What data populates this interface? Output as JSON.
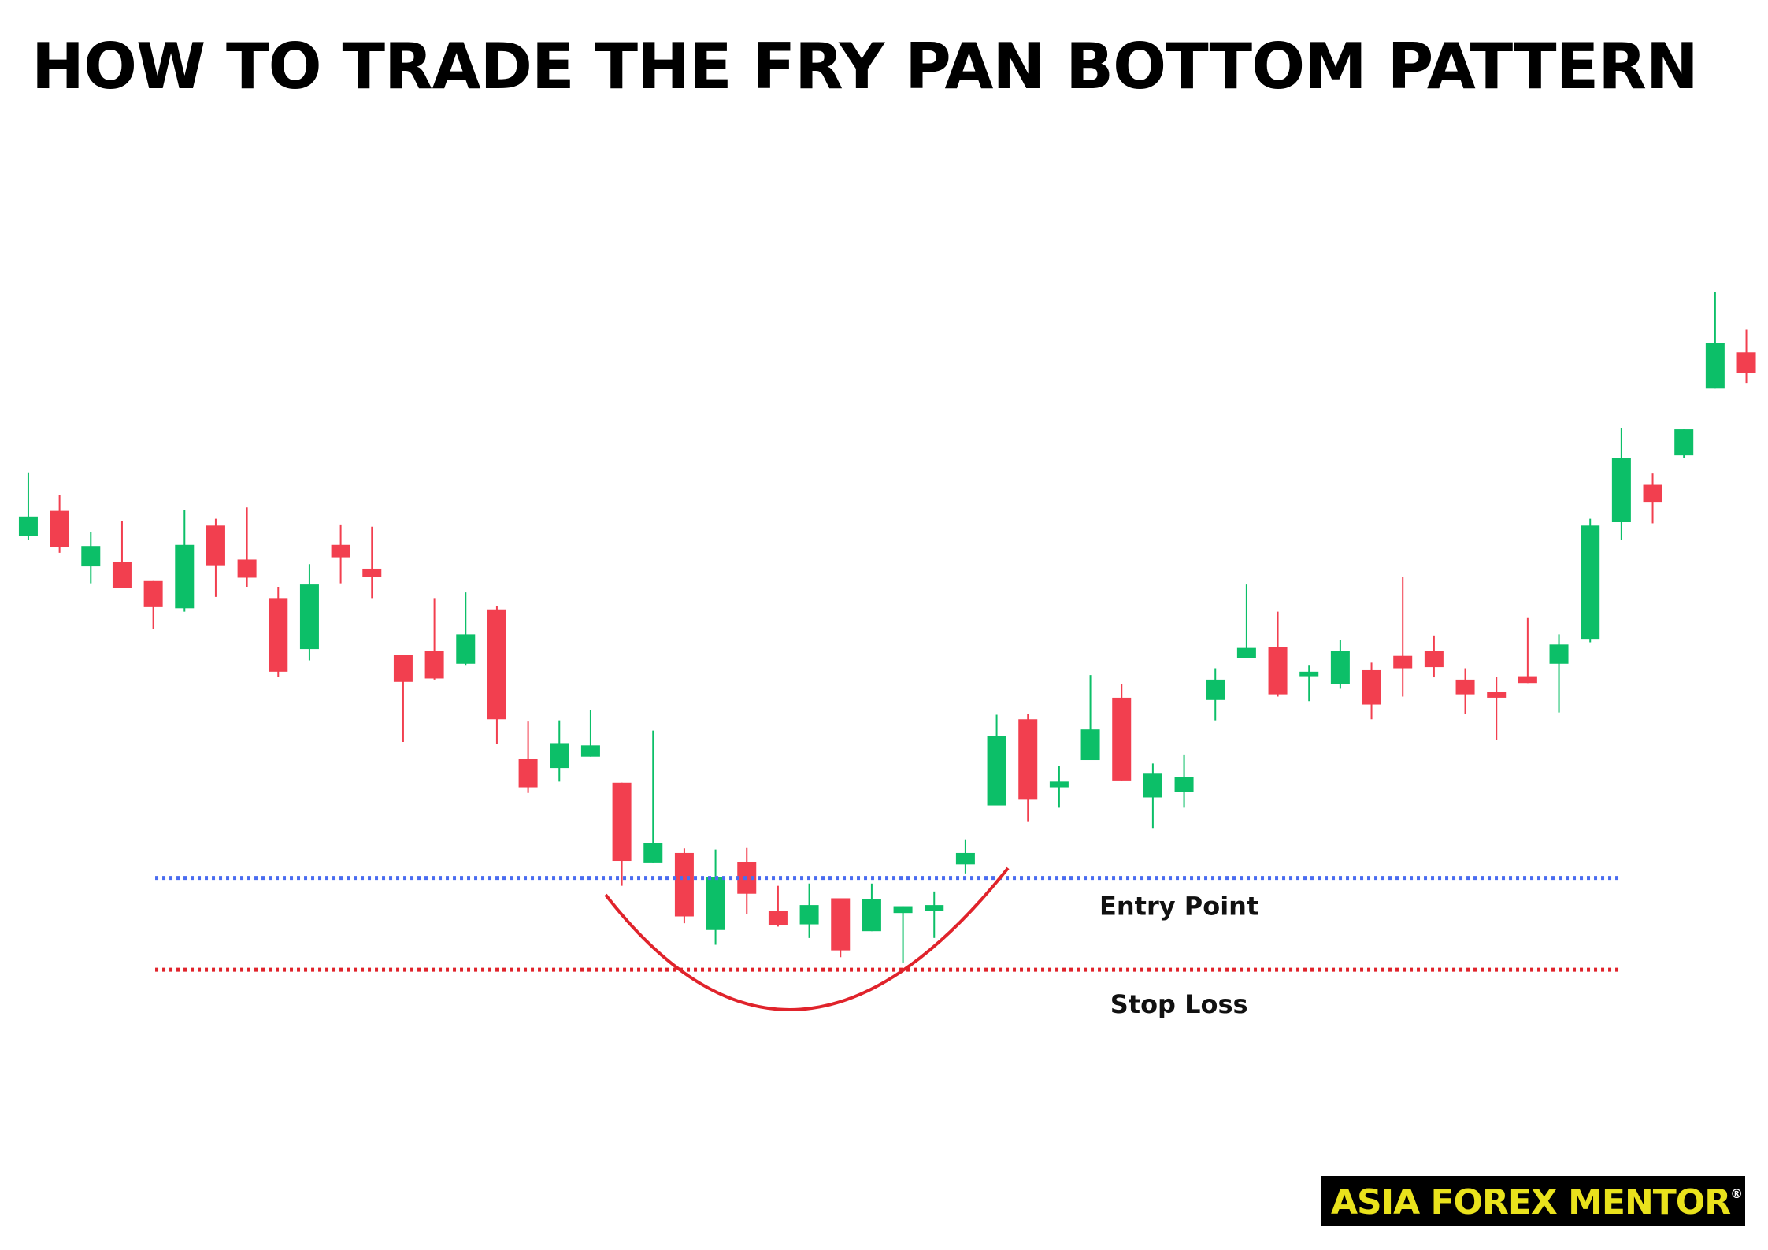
{
  "chart_data": {
    "type": "candlestick",
    "title": "HOW TO TRADE THE FRY PAN BOTTOM PATTERN",
    "ylim": [
      100,
      800
    ],
    "up_color": "#0cbf68",
    "down_color": "#f23f4f",
    "open": [
      527,
      549,
      500,
      504,
      487,
      463,
      536,
      506,
      472,
      427,
      519,
      498,
      422,
      425,
      414,
      462,
      330,
      322,
      332,
      309,
      238,
      247,
      179,
      239,
      196,
      184,
      207,
      178,
      194,
      196,
      237,
      289,
      365,
      305,
      329,
      384,
      296,
      301,
      382,
      419,
      429,
      403,
      396,
      409,
      421,
      425,
      400,
      389,
      403,
      414,
      436,
      539,
      572,
      598,
      657,
      689
    ],
    "high": [
      583,
      563,
      530,
      540,
      487,
      550,
      542,
      552,
      482,
      502,
      537,
      535,
      422,
      472,
      477,
      465,
      363,
      364,
      373,
      309,
      355,
      251,
      250,
      252,
      218,
      220,
      207,
      220,
      200,
      213,
      259,
      369,
      370,
      324,
      404,
      396,
      326,
      334,
      410,
      484,
      460,
      413,
      435,
      415,
      491,
      439,
      410,
      402,
      455,
      440,
      542,
      622,
      582,
      621,
      742,
      709
    ],
    "low": [
      523,
      512,
      485,
      481,
      445,
      460,
      473,
      482,
      402,
      417,
      485,
      472,
      345,
      400,
      413,
      343,
      300,
      310,
      332,
      218,
      238,
      185,
      166,
      193,
      182,
      172,
      155,
      178,
      150,
      172,
      229,
      289,
      275,
      287,
      329,
      311,
      269,
      287,
      364,
      419,
      385,
      381,
      392,
      365,
      385,
      402,
      370,
      347,
      397,
      371,
      433,
      523,
      538,
      596,
      657,
      662
    ],
    "close": [
      544,
      517,
      518,
      481,
      464,
      519,
      501,
      490,
      407,
      484,
      508,
      491,
      398,
      401,
      440,
      365,
      305,
      344,
      342,
      240,
      256,
      191,
      226,
      211,
      183,
      201,
      161,
      206,
      200,
      201,
      247,
      350,
      294,
      310,
      356,
      311,
      317,
      314,
      400,
      428,
      387,
      407,
      425,
      378,
      410,
      411,
      387,
      384,
      397,
      431,
      536,
      596,
      557,
      621,
      697,
      671
    ],
    "levels": [
      {
        "label": "Entry Point",
        "value": 225,
        "color": "#4a6cf0"
      },
      {
        "label": "Stop Loss",
        "value": 144,
        "color": "#e0232b"
      }
    ]
  },
  "logo": {
    "text": "ASIA FOREX MENTOR",
    "mark": "®"
  }
}
